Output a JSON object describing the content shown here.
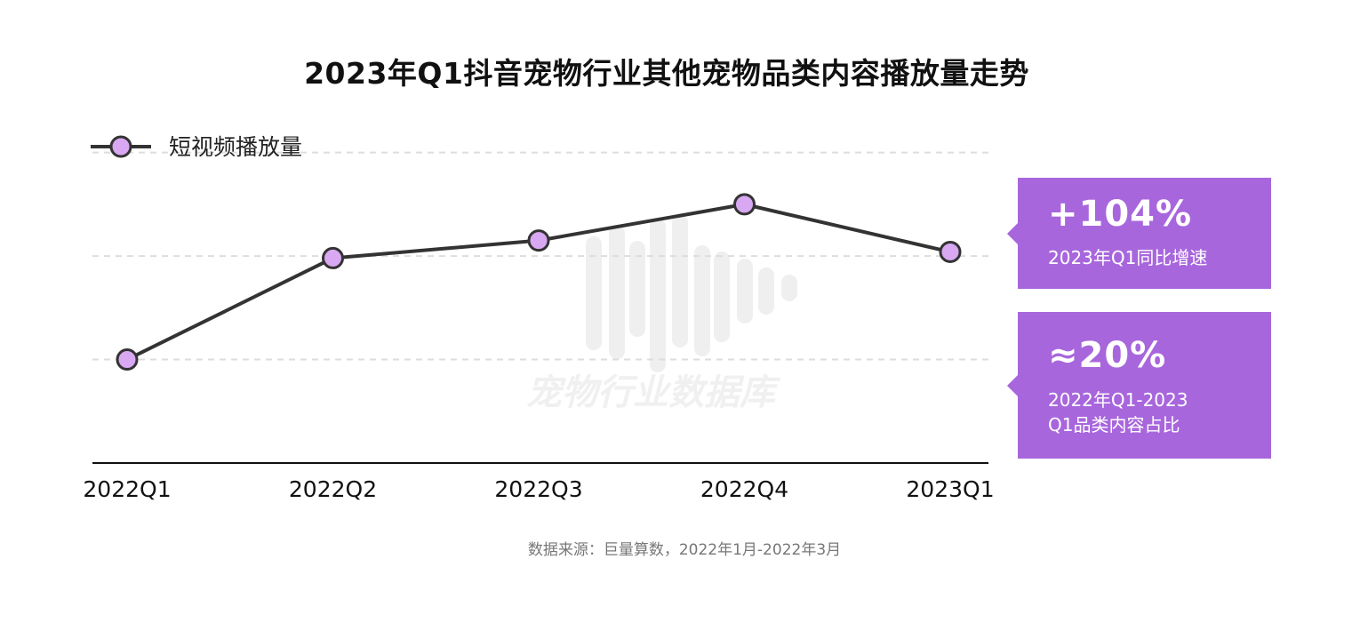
{
  "title": "2023年Q1抖音宠物行业其他宠物品类内容播放量走势",
  "legend": {
    "label": "短视频播放量"
  },
  "watermark": "宠物行业数据库",
  "callouts": [
    {
      "value": "+104%",
      "label": "2023年Q1同比增速"
    },
    {
      "value": "≈20%",
      "label_line1": "2022年Q1-2023",
      "label_line2": "Q1品类内容占比"
    }
  ],
  "source": "数据来源：巨量算数，2022年1月-2022年3月",
  "colors": {
    "line": "#333333",
    "marker_fill": "#d9a8f2",
    "callout_bg": "#a866dd",
    "grid": "#dddddd"
  },
  "chart_data": {
    "type": "line",
    "categories": [
      "2022Q1",
      "2022Q2",
      "2022Q3",
      "2022Q4",
      "2023Q1"
    ],
    "series": [
      {
        "name": "短视频播放量",
        "values": [
          1.0,
          1.98,
          2.15,
          2.5,
          2.04
        ]
      }
    ],
    "ylim": [
      0,
      3.1
    ],
    "grid": true,
    "legend_position": "top-left"
  }
}
